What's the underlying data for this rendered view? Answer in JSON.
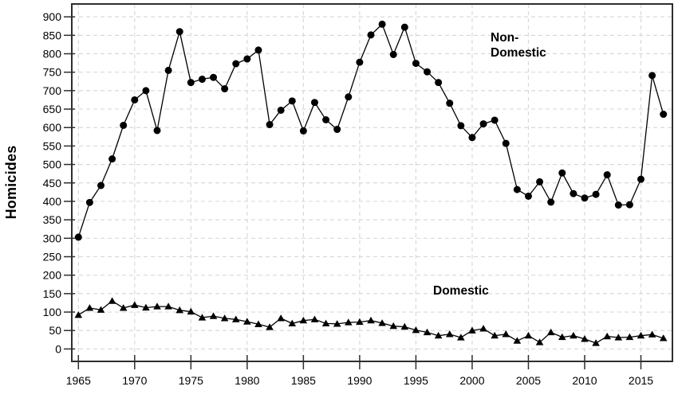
{
  "chart_data": {
    "type": "line",
    "title": "",
    "ylabel": "Homicides",
    "xlabel": "",
    "xlim": [
      1964.4,
      2017.8
    ],
    "ylim": [
      0,
      900
    ],
    "x_ticks": [
      1965,
      1970,
      1975,
      1980,
      1985,
      1990,
      1995,
      2000,
      2005,
      2010,
      2015
    ],
    "y_ticks": [
      0,
      50,
      100,
      150,
      200,
      250,
      300,
      350,
      400,
      450,
      500,
      550,
      600,
      650,
      700,
      750,
      800,
      850,
      900
    ],
    "grid": "dashed-both-directions",
    "legend_position": "inline-annotations",
    "x": [
      1965,
      1966,
      1967,
      1968,
      1969,
      1970,
      1971,
      1972,
      1973,
      1974,
      1975,
      1976,
      1977,
      1978,
      1979,
      1980,
      1981,
      1982,
      1983,
      1984,
      1985,
      1986,
      1987,
      1988,
      1989,
      1990,
      1991,
      1992,
      1993,
      1994,
      1995,
      1996,
      1997,
      1998,
      1999,
      2000,
      2001,
      2002,
      2003,
      2004,
      2005,
      2006,
      2007,
      2008,
      2009,
      2010,
      2011,
      2012,
      2013,
      2014,
      2015,
      2016,
      2017
    ],
    "series": [
      {
        "name": "Non-Domestic",
        "marker": "circle",
        "color": "#000000",
        "values": [
          303,
          397,
          443,
          515,
          606,
          675,
          700,
          592,
          755,
          860,
          722,
          731,
          736,
          705,
          773,
          786,
          810,
          608,
          647,
          672,
          591,
          668,
          621,
          595,
          683,
          777,
          851,
          880,
          798,
          872,
          774,
          751,
          722,
          666,
          605,
          573,
          610,
          620,
          557,
          432,
          414,
          453,
          398,
          477,
          421,
          409,
          419,
          472,
          390,
          391,
          460,
          741,
          636
        ]
      },
      {
        "name": "Domestic",
        "marker": "triangle",
        "color": "#000000",
        "values": [
          92,
          111,
          106,
          130,
          111,
          119,
          112,
          115,
          115,
          105,
          101,
          85,
          89,
          83,
          80,
          74,
          67,
          59,
          83,
          69,
          77,
          80,
          69,
          68,
          72,
          73,
          77,
          70,
          62,
          60,
          51,
          45,
          36,
          40,
          31,
          50,
          55,
          36,
          40,
          22,
          36,
          18,
          45,
          32,
          36,
          27,
          16,
          34,
          31,
          32,
          36,
          39,
          29
        ]
      }
    ],
    "annotations": [
      {
        "series": "Non-Domestic",
        "text": "Non-\nDomestic"
      },
      {
        "series": "Domestic",
        "text": "Domestic"
      }
    ],
    "style": {
      "background": "#ffffff",
      "grid_color": "#d9d9d9",
      "frame_color": "#2e2e2e",
      "text_color": "#000000"
    }
  }
}
